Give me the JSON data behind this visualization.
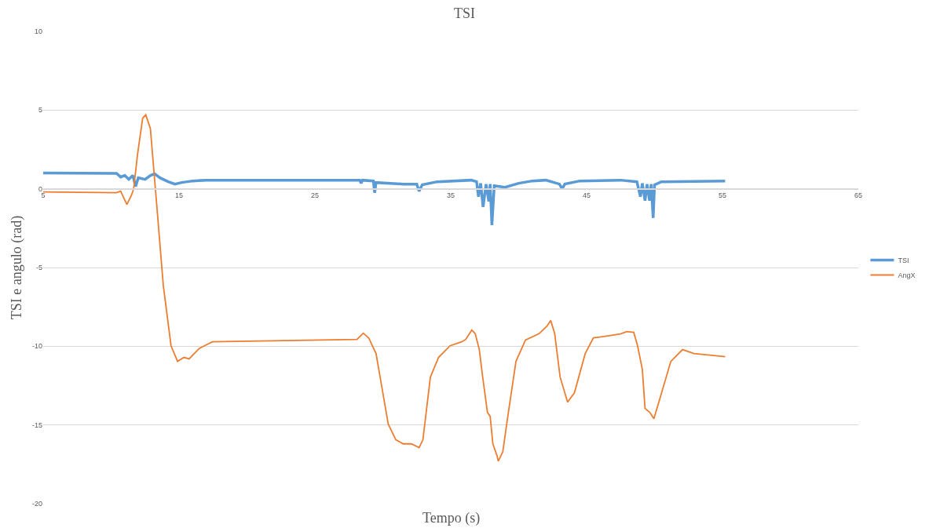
{
  "chart_data": {
    "type": "line",
    "title": "TSI",
    "xlabel": "Tempo (s)",
    "ylabel": "TSI e angulo (rad)",
    "xlim": [
      5,
      65
    ],
    "xticks": [
      5,
      15,
      25,
      35,
      45,
      55,
      65
    ],
    "ylim": [
      -20,
      10
    ],
    "yticks": [
      -20,
      -15,
      -10,
      -5,
      0,
      5,
      10
    ],
    "grid": "y",
    "legend": "right",
    "marker": "none",
    "series": [
      {
        "name": "TSI",
        "color": "#5b9bd5",
        "x": [
          5,
          10.4,
          10.7,
          11.0,
          11.3,
          11.6,
          11.8,
          12.0,
          12.5,
          12.9,
          13.2,
          13.6,
          14.2,
          14.7,
          15.2,
          16,
          17,
          28.3,
          28.4,
          28.5,
          29.3,
          29.4,
          29.5,
          31.5,
          32.5,
          32.67,
          32.9,
          34,
          36.5,
          36.9,
          37.04,
          37.2,
          37.38,
          37.6,
          37.8,
          37.9,
          38.03,
          38.2,
          39,
          40,
          41,
          42,
          43.0,
          43.2,
          43.4,
          44.5,
          47.5,
          48.7,
          48.96,
          49.1,
          49.3,
          49.45,
          49.63,
          49.75,
          49.9,
          50.0,
          50.5,
          55.2
        ],
        "values": [
          1.0,
          0.98,
          0.75,
          0.85,
          0.6,
          0.85,
          0.15,
          0.7,
          0.6,
          0.85,
          0.95,
          0.7,
          0.45,
          0.3,
          0.4,
          0.5,
          0.55,
          0.55,
          0.35,
          0.55,
          0.5,
          -0.25,
          0.4,
          0.3,
          0.3,
          -0.15,
          0.25,
          0.45,
          0.55,
          0.45,
          -0.5,
          0.35,
          -1.15,
          0.3,
          -0.8,
          0.3,
          -2.3,
          0.2,
          0.1,
          0.35,
          0.5,
          0.55,
          0.3,
          0.0,
          0.3,
          0.5,
          0.55,
          0.45,
          -0.5,
          0.35,
          -0.75,
          0.3,
          -0.75,
          0.3,
          -1.85,
          0.25,
          0.45,
          0.5
        ]
      },
      {
        "name": "AngX",
        "color": "#ed7d31",
        "x": [
          5,
          10.4,
          10.7,
          11.16,
          11.5,
          11.66,
          11.94,
          12.32,
          12.55,
          12.89,
          13.37,
          13.84,
          14.41,
          14.89,
          15.36,
          15.74,
          16.5,
          17.45,
          28.1,
          28.56,
          28.96,
          29.5,
          29.8,
          30.4,
          30.96,
          31.5,
          32.1,
          32.67,
          32.95,
          33.5,
          34.1,
          34.95,
          35.8,
          36.1,
          36.55,
          36.8,
          37.1,
          37.35,
          37.7,
          37.9,
          38.1,
          38.4,
          38.5,
          38.83,
          39.2,
          39.8,
          40.5,
          41.5,
          42.08,
          42.36,
          42.65,
          43.05,
          43.6,
          44.1,
          44.9,
          45.5,
          46.36,
          47.5,
          47.95,
          48.47,
          48.75,
          49.1,
          49.3,
          49.65,
          49.95,
          50.35,
          51.2,
          52.06,
          52.9,
          55.2
        ],
        "values": [
          -0.2,
          -0.25,
          -0.15,
          -1.0,
          -0.4,
          0.0,
          2.16,
          4.48,
          4.7,
          3.82,
          -1.16,
          -6.13,
          -9.97,
          -10.96,
          -10.71,
          -10.8,
          -10.13,
          -9.72,
          -9.57,
          -9.17,
          -9.47,
          -10.46,
          -11.96,
          -14.95,
          -15.94,
          -16.2,
          -16.2,
          -16.44,
          -15.94,
          -11.96,
          -10.71,
          -9.97,
          -9.72,
          -9.57,
          -8.97,
          -9.2,
          -10.2,
          -11.96,
          -14.2,
          -14.45,
          -16.2,
          -16.94,
          -17.3,
          -16.7,
          -14.45,
          -10.96,
          -9.6,
          -9.2,
          -8.72,
          -8.37,
          -9.2,
          -11.96,
          -13.55,
          -12.96,
          -10.46,
          -9.47,
          -9.37,
          -9.22,
          -9.07,
          -9.12,
          -9.97,
          -11.46,
          -13.95,
          -14.2,
          -14.6,
          -13.45,
          -10.96,
          -10.21,
          -10.46,
          -10.66
        ]
      }
    ]
  }
}
